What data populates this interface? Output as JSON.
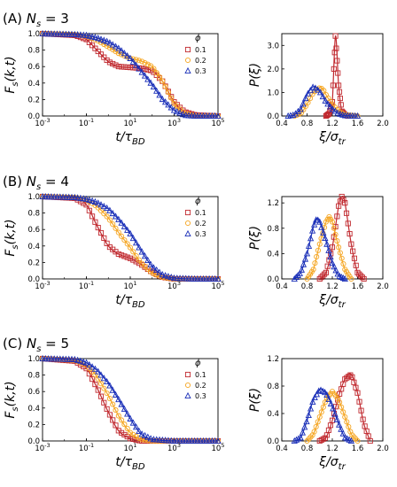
{
  "figure": {
    "rows": [
      {
        "panel": "(A)",
        "ns_label": "N",
        "ns_sub": "s",
        "ns_eq": " = 3"
      },
      {
        "panel": "(B)",
        "ns_label": "N",
        "ns_sub": "s",
        "ns_eq": " = 4"
      },
      {
        "panel": "(C)",
        "ns_label": "N",
        "ns_sub": "s",
        "ns_eq": " = 5"
      }
    ],
    "legend": {
      "title": "ϕ",
      "entries": [
        "0.1",
        "0.2",
        "0.3"
      ]
    },
    "left_ylabel": "F_s(k,t)",
    "left_xlabel": "t/τ_BD",
    "right_ylabel": "P(ξ)",
    "right_xlabel": "ξ/σ_tr",
    "colors": {
      "phi_0.1": "#c0282e",
      "phi_0.2": "#f5a623",
      "phi_0.3": "#1a2fb8"
    }
  },
  "chart_data": [
    {
      "type": "line",
      "row": "A",
      "xscale": "log",
      "xlim": [
        0.001,
        100000
      ],
      "ylim": [
        0,
        1
      ],
      "xticks": [
        "10-3",
        "10-1",
        "101",
        "103",
        "105"
      ],
      "yticks": [
        "0.0",
        "0.2",
        "0.4",
        "0.6",
        "0.8",
        "1.0"
      ],
      "ylabel": "F_s(k,t)",
      "xlabel": "t/τ_BD",
      "series": [
        {
          "name": "0.1",
          "x": [
            0.001,
            0.03,
            0.1,
            0.3,
            1,
            3,
            10,
            30,
            100,
            300,
            1000,
            3000,
            10000,
            100000
          ],
          "y": [
            1.0,
            0.98,
            0.93,
            0.8,
            0.66,
            0.6,
            0.59,
            0.58,
            0.55,
            0.42,
            0.17,
            0.05,
            0.01,
            0.0
          ]
        },
        {
          "name": "0.2",
          "x": [
            0.001,
            0.03,
            0.1,
            0.3,
            1,
            3,
            10,
            30,
            100,
            300,
            1000,
            3000,
            10000,
            100000
          ],
          "y": [
            1.0,
            0.99,
            0.97,
            0.92,
            0.84,
            0.76,
            0.7,
            0.67,
            0.6,
            0.42,
            0.15,
            0.03,
            0.0,
            0.0
          ]
        },
        {
          "name": "0.3",
          "x": [
            0.001,
            0.03,
            0.1,
            0.3,
            1,
            3,
            10,
            30,
            100,
            300,
            1000,
            3000,
            10000,
            100000
          ],
          "y": [
            1.0,
            0.99,
            0.98,
            0.95,
            0.9,
            0.82,
            0.7,
            0.55,
            0.38,
            0.2,
            0.07,
            0.01,
            0.0,
            0.0
          ]
        }
      ]
    },
    {
      "type": "line",
      "row": "A",
      "xlim": [
        0.4,
        2.0
      ],
      "ylim": [
        0,
        3.5
      ],
      "xticks": [
        "0.4",
        "0.8",
        "1.2",
        "1.6",
        "2.0"
      ],
      "yticks": [
        "0.0",
        "1.0",
        "2.0",
        "3.0"
      ],
      "ylabel": "P(ξ)",
      "xlabel": "ξ/σ_tr",
      "series": [
        {
          "name": "0.1",
          "x": [
            1.1,
            1.15,
            1.2,
            1.25,
            1.3,
            1.35,
            1.4,
            1.45
          ],
          "y": [
            0.0,
            0.1,
            0.6,
            3.4,
            1.3,
            0.2,
            0.05,
            0.0
          ]
        },
        {
          "name": "0.2",
          "x": [
            0.6,
            0.7,
            0.8,
            0.9,
            1.0,
            1.05,
            1.1,
            1.2,
            1.3,
            1.4,
            1.6
          ],
          "y": [
            0.0,
            0.1,
            0.5,
            1.0,
            1.2,
            1.15,
            0.9,
            0.5,
            0.2,
            0.05,
            0.0
          ]
        },
        {
          "name": "0.3",
          "x": [
            0.5,
            0.6,
            0.7,
            0.8,
            0.9,
            1.0,
            1.1,
            1.2,
            1.3,
            1.4,
            1.6
          ],
          "y": [
            0.0,
            0.05,
            0.3,
            0.9,
            1.25,
            1.05,
            0.6,
            0.3,
            0.1,
            0.02,
            0.0
          ]
        }
      ]
    },
    {
      "type": "line",
      "row": "B",
      "xscale": "log",
      "xlim": [
        0.001,
        100000
      ],
      "ylim": [
        0,
        1
      ],
      "xticks": [
        "10-3",
        "10-1",
        "101",
        "103",
        "105"
      ],
      "yticks": [
        "0.0",
        "0.2",
        "0.4",
        "0.6",
        "0.8",
        "1.0"
      ],
      "ylabel": "F_s(k,t)",
      "xlabel": "t/τ_BD",
      "series": [
        {
          "name": "0.1",
          "x": [
            0.001,
            0.03,
            0.1,
            0.3,
            1,
            3,
            10,
            30,
            100,
            300,
            1000,
            10000,
            100000
          ],
          "y": [
            1.0,
            0.98,
            0.9,
            0.65,
            0.4,
            0.3,
            0.25,
            0.18,
            0.08,
            0.02,
            0.0,
            0.0,
            0.0
          ]
        },
        {
          "name": "0.2",
          "x": [
            0.001,
            0.03,
            0.1,
            0.3,
            1,
            3,
            10,
            30,
            100,
            300,
            1000,
            10000,
            100000
          ],
          "y": [
            1.0,
            0.99,
            0.96,
            0.88,
            0.74,
            0.56,
            0.38,
            0.2,
            0.07,
            0.02,
            0.0,
            0.0,
            0.0
          ]
        },
        {
          "name": "0.3",
          "x": [
            0.001,
            0.03,
            0.1,
            0.3,
            1,
            3,
            10,
            30,
            100,
            300,
            1000,
            10000,
            100000
          ],
          "y": [
            1.0,
            0.99,
            0.97,
            0.93,
            0.85,
            0.72,
            0.55,
            0.35,
            0.15,
            0.05,
            0.01,
            0.0,
            0.0
          ]
        }
      ]
    },
    {
      "type": "line",
      "row": "B",
      "xlim": [
        0.4,
        2.0
      ],
      "ylim": [
        0,
        1.3
      ],
      "xticks": [
        "0.4",
        "0.8",
        "1.2",
        "1.6",
        "2.0"
      ],
      "yticks": [
        "0.0",
        "0.4",
        "0.8",
        "1.2"
      ],
      "ylabel": "P(ξ)",
      "xlabel": "ξ/σ_tr",
      "series": [
        {
          "name": "0.1",
          "x": [
            1.0,
            1.1,
            1.2,
            1.3,
            1.35,
            1.4,
            1.5,
            1.6,
            1.7
          ],
          "y": [
            0.0,
            0.1,
            0.5,
            1.15,
            1.3,
            1.2,
            0.55,
            0.1,
            0.0
          ]
        },
        {
          "name": "0.2",
          "x": [
            0.8,
            0.9,
            1.0,
            1.1,
            1.15,
            1.2,
            1.3,
            1.4,
            1.5
          ],
          "y": [
            0.0,
            0.15,
            0.55,
            0.9,
            0.98,
            0.9,
            0.5,
            0.15,
            0.0
          ]
        },
        {
          "name": "0.3",
          "x": [
            0.6,
            0.7,
            0.8,
            0.9,
            0.95,
            1.0,
            1.1,
            1.2,
            1.3,
            1.4
          ],
          "y": [
            0.0,
            0.1,
            0.4,
            0.82,
            0.95,
            0.9,
            0.6,
            0.25,
            0.05,
            0.0
          ]
        }
      ]
    },
    {
      "type": "line",
      "row": "C",
      "xscale": "log",
      "xlim": [
        0.001,
        100000
      ],
      "ylim": [
        0,
        1
      ],
      "xticks": [
        "10-3",
        "10-1",
        "101",
        "103",
        "105"
      ],
      "yticks": [
        "0.0",
        "0.2",
        "0.4",
        "0.6",
        "0.8",
        "1.0"
      ],
      "ylabel": "F_s(k,t)",
      "xlabel": "t/τ_BD",
      "series": [
        {
          "name": "0.1",
          "x": [
            0.001,
            0.03,
            0.1,
            0.3,
            1,
            3,
            10,
            30,
            100,
            1000,
            100000
          ],
          "y": [
            1.0,
            0.97,
            0.88,
            0.65,
            0.35,
            0.12,
            0.03,
            0.0,
            0.0,
            0.0,
            0.0
          ]
        },
        {
          "name": "0.2",
          "x": [
            0.001,
            0.03,
            0.1,
            0.3,
            1,
            3,
            10,
            30,
            100,
            1000,
            100000
          ],
          "y": [
            1.0,
            0.98,
            0.92,
            0.78,
            0.55,
            0.3,
            0.1,
            0.02,
            0.0,
            0.0,
            0.0
          ]
        },
        {
          "name": "0.3",
          "x": [
            0.001,
            0.03,
            0.1,
            0.3,
            1,
            3,
            10,
            30,
            100,
            1000,
            100000
          ],
          "y": [
            1.0,
            0.99,
            0.95,
            0.86,
            0.7,
            0.5,
            0.27,
            0.09,
            0.02,
            0.0,
            0.0
          ]
        }
      ]
    },
    {
      "type": "line",
      "row": "C",
      "xlim": [
        0.4,
        2.0
      ],
      "ylim": [
        0,
        1.2
      ],
      "xticks": [
        "0.4",
        "0.8",
        "1.2",
        "1.6",
        "2.0"
      ],
      "yticks": [
        "0.0",
        "0.4",
        "0.8",
        "1.2"
      ],
      "ylabel": "P(ξ)",
      "xlabel": "ξ/σ_tr",
      "series": [
        {
          "name": "0.1",
          "x": [
            1.0,
            1.1,
            1.2,
            1.3,
            1.4,
            1.5,
            1.6,
            1.7,
            1.8
          ],
          "y": [
            0.0,
            0.05,
            0.3,
            0.65,
            0.9,
            0.97,
            0.7,
            0.25,
            0.0
          ]
        },
        {
          "name": "0.2",
          "x": [
            0.8,
            0.9,
            1.0,
            1.1,
            1.2,
            1.3,
            1.4,
            1.5,
            1.6
          ],
          "y": [
            0.0,
            0.1,
            0.35,
            0.6,
            0.72,
            0.6,
            0.35,
            0.1,
            0.0
          ]
        },
        {
          "name": "0.3",
          "x": [
            0.6,
            0.7,
            0.8,
            0.9,
            1.0,
            1.1,
            1.2,
            1.3,
            1.4,
            1.5
          ],
          "y": [
            0.0,
            0.05,
            0.3,
            0.6,
            0.75,
            0.7,
            0.5,
            0.25,
            0.05,
            0.0
          ]
        }
      ]
    }
  ]
}
